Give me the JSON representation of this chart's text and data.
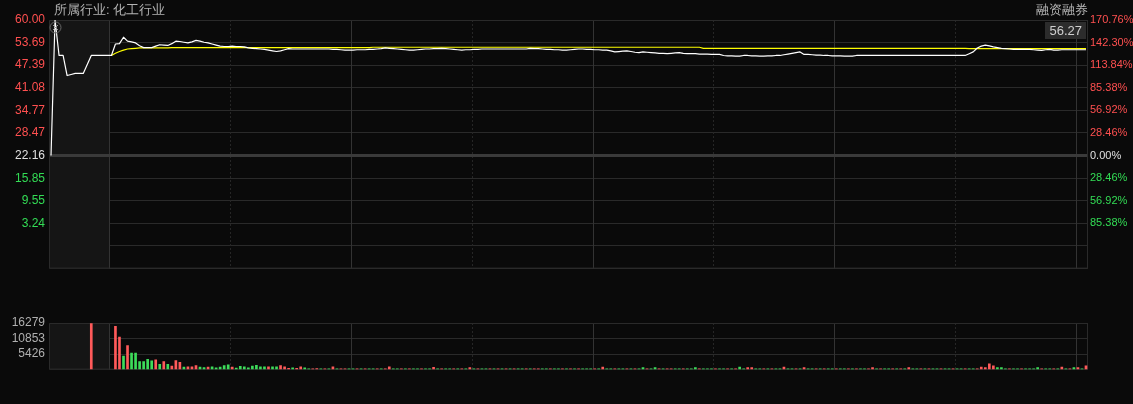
{
  "chart_data": [
    {
      "type": "line",
      "title": "所属行业: 化工行业",
      "annotations": [
        "融资融券",
        "56.27"
      ],
      "categories": [
        null,
        null,
        null,
        null,
        null,
        null,
        null,
        null,
        null,
        null,
        null,
        null,
        null,
        null,
        null,
        null,
        null,
        null,
        null,
        null,
        null,
        null,
        null,
        null,
        null,
        null,
        null,
        null,
        null,
        null,
        null,
        null,
        null,
        null,
        null,
        null,
        null,
        null,
        null,
        null,
        null,
        null,
        null,
        null,
        null,
        null,
        null,
        null,
        null,
        null,
        null,
        null,
        null,
        null,
        null,
        null,
        null,
        null,
        null,
        null,
        null,
        null,
        null,
        null,
        null,
        null,
        null,
        null,
        null,
        null,
        null,
        null,
        null,
        null,
        null,
        null,
        null,
        null,
        null,
        null,
        null,
        null,
        null,
        null,
        null,
        null,
        null,
        null,
        null,
        null,
        null,
        null,
        null,
        null,
        null,
        null,
        null,
        null,
        null,
        null,
        null,
        null,
        null,
        null,
        null,
        null,
        null,
        null,
        null,
        null,
        null,
        null,
        null,
        null,
        null,
        null,
        null,
        null,
        null,
        null,
        null,
        null,
        null,
        null,
        null,
        null,
        null,
        null,
        null,
        null,
        null,
        null,
        null,
        null,
        null,
        null,
        null,
        null,
        null,
        null,
        null,
        null,
        null,
        null,
        null,
        null,
        null,
        null,
        null,
        null,
        null,
        null,
        null,
        null,
        null,
        null,
        null,
        null,
        null,
        null,
        null,
        null,
        null,
        null,
        null,
        null,
        null,
        null,
        null,
        null,
        null,
        null,
        null,
        null,
        null,
        null,
        null,
        null,
        null,
        null,
        null,
        null,
        null,
        null,
        null,
        null,
        null,
        null,
        null,
        null,
        null,
        null,
        null,
        null,
        null,
        null,
        null,
        null,
        null,
        null,
        null,
        null,
        null,
        null,
        null,
        null,
        null,
        null,
        null,
        null,
        null,
        null,
        null,
        null,
        null,
        null,
        null,
        null,
        null,
        null,
        null,
        null,
        null,
        null,
        null,
        null,
        null,
        null,
        null,
        null,
        null,
        null,
        null,
        null,
        null,
        null,
        null,
        null,
        null,
        null,
        null,
        null,
        null,
        null,
        null,
        null,
        null,
        null,
        null,
        null,
        null,
        null,
        null,
        null,
        null,
        null,
        null,
        null
      ],
      "series": [
        {
          "color": "#ffffff",
          "values": [
            22.16,
            60,
            50.1,
            50.1,
            44.5,
            44.8,
            45.1,
            45.1,
            45.1,
            47.6,
            50.1,
            50.1,
            50.1,
            50.1,
            50.1,
            50.1,
            53.3,
            53.4,
            55.2,
            54.1,
            53.9,
            53.6,
            52.8,
            52.3,
            52.3,
            52.3,
            52.7,
            53.1,
            53,
            52.9,
            53.4,
            54.1,
            54,
            53.8,
            53.6,
            53.9,
            54.3,
            54.1,
            53.8,
            53.6,
            53.3,
            53,
            52.7,
            52.6,
            52.6,
            52.7,
            52.6,
            52.6,
            52.5,
            52.2,
            52.1,
            52,
            51.9,
            51.8,
            51.6,
            51.4,
            51.2,
            51.4,
            51.7,
            52,
            51.9,
            51.9,
            51.9,
            51.9,
            51.9,
            51.9,
            51.9,
            51.9,
            51.9,
            51.9,
            51.8,
            51.8,
            51.7,
            51.6,
            51.6,
            51.6,
            51.7,
            51.7,
            51.7,
            51.8,
            51.8,
            51.9,
            52,
            52.2,
            52.1,
            52,
            51.9,
            51.8,
            51.7,
            51.6,
            51.6,
            51.7,
            51.8,
            51.9,
            51.9,
            52,
            52,
            52.1,
            52,
            51.9,
            51.8,
            51.7,
            51.6,
            51.7,
            51.7,
            51.8,
            51.8,
            51.9,
            51.9,
            51.9,
            51.9,
            51.9,
            51.9,
            51.9,
            51.9,
            51.9,
            51.9,
            51.9,
            51.9,
            52.1,
            52,
            52,
            51.9,
            51.8,
            51.8,
            51.7,
            51.7,
            51.6,
            51.6,
            51.7,
            51.8,
            51.9,
            51.9,
            51.8,
            51.8,
            51.7,
            51.7,
            51.6,
            51.6,
            51.4,
            51.1,
            51.2,
            51.3,
            51.4,
            51.2,
            51,
            50.9,
            51.1,
            51,
            50.9,
            50.8,
            50.7,
            50.7,
            50.6,
            50.7,
            50.8,
            50.9,
            50.7,
            50.6,
            50.6,
            50.6,
            50.5,
            50.5,
            50.5,
            50.4,
            50.4,
            50.4,
            50.1,
            50,
            50,
            49.9,
            49.9,
            50.1,
            50.1,
            50,
            50,
            49.9,
            49.9,
            50,
            50,
            50.1,
            50.1,
            50.3,
            50.5,
            50.7,
            50.9,
            51.1,
            50.4,
            50.4,
            50.3,
            50.2,
            50.2,
            50.1,
            50.1,
            50,
            50,
            50,
            49.9,
            49.9,
            49.9,
            50.1,
            50.1,
            50.1,
            50.1,
            50.1,
            50.1,
            50.1,
            50.1,
            50.1,
            50.1,
            50.1,
            50.1,
            50.1,
            50.1,
            50.1,
            50.1,
            50.1,
            50.1,
            50.1,
            50.1,
            50.1,
            50.1,
            50.1,
            50.1,
            50.1,
            50.1,
            50.1,
            50.1,
            50.6,
            51.1,
            52.2,
            52.7,
            53,
            52.8,
            52.5,
            52.3,
            52.1,
            52,
            51.9,
            51.8,
            51.8,
            51.8,
            51.8,
            51.8,
            51.7,
            51.6,
            51.5,
            51.7,
            51.8,
            51.6,
            51.6,
            51.7,
            51.7,
            51.7,
            51.7,
            51.7,
            51.7,
            51.7
          ]
        },
        {
          "color": "#ffff00",
          "values": [
            null,
            null,
            null,
            null,
            null,
            null,
            null,
            null,
            null,
            null,
            null,
            null,
            null,
            null,
            null,
            50.1,
            50.7,
            51.2,
            51.6,
            51.9,
            52,
            52.1,
            52.2,
            52.2,
            52.2,
            52.2,
            52.2,
            52.2,
            52.2,
            52.2,
            52.3,
            52.3,
            52.3,
            52.3,
            52.3,
            52.3,
            52.3,
            52.3,
            52.3,
            52.3,
            52.3,
            52.3,
            52.3,
            52.3,
            52.3,
            52.3,
            52.3,
            52.3,
            52.3,
            52.3,
            52.3,
            52.3,
            52.3,
            52.3,
            52.3,
            52.3,
            52.3,
            52.3,
            52.3,
            52.3,
            52.3,
            52.3,
            52.3,
            52.3,
            52.3,
            52.3,
            52.3,
            52.3,
            52.3,
            52.3,
            52.3,
            52.3,
            52.3,
            52.3,
            52.3,
            52.3,
            52.3,
            52.3,
            52.3,
            52.3,
            52.4,
            52.4,
            52.4,
            52.4,
            52.4,
            52.4,
            52.4,
            52.4,
            52.4,
            52.4,
            52.4,
            52.4,
            52.4,
            52.4,
            52.4,
            52.4,
            52.4,
            52.4,
            52.4,
            52.4,
            52.4,
            52.4,
            52.4,
            52.4,
            52.4,
            52.4,
            52.4,
            52.4,
            52.4,
            52.4,
            52.4,
            52.4,
            52.4,
            52.4,
            52.4,
            52.4,
            52.4,
            52.4,
            52.4,
            52.4,
            52.4,
            52.4,
            52.4,
            52.4,
            52.4,
            52.4,
            52.4,
            52.4,
            52.4,
            52.4,
            52.4,
            52.4,
            52.4,
            52.4,
            52.4,
            52.4,
            52.4,
            52.4,
            52.4,
            52.4,
            52.4,
            52.4,
            52.4,
            52.4,
            52.4,
            52.4,
            52.4,
            52.4,
            52.4,
            52.4,
            52.4,
            52.4,
            52.4,
            52.4,
            52.4,
            52.4,
            52.4,
            52.4,
            52.4,
            52.4,
            52.4,
            52.4,
            52.1,
            52.1,
            52.1,
            52.1,
            52.1,
            52.1,
            52.1,
            52.1,
            52.1,
            52.1,
            52.1,
            52.1,
            52.1,
            52.1,
            52.1,
            52.1,
            52.1,
            52.1,
            52.1,
            52.1,
            52.1,
            52.1,
            52.1,
            52.1,
            52.1,
            52.1,
            52.1,
            52.1,
            52.1,
            52.1,
            52.1,
            52.1,
            52.1,
            52.1,
            52.1,
            52.1,
            52.1,
            52.1,
            52.1,
            52.1,
            52.1,
            52.1,
            52.1,
            52.1,
            52.1,
            52.1,
            52.1,
            52.1,
            52.1,
            52.1,
            52.1,
            52.1,
            52.1,
            52.1,
            52.1,
            52.1,
            52.1,
            52.1,
            52.1,
            52.1,
            52.1,
            52.1,
            52.1,
            52.1,
            52.1,
            52.1,
            52,
            52,
            52,
            52,
            52,
            52,
            52,
            52,
            52,
            52,
            52,
            52,
            52,
            52,
            52,
            52,
            52,
            52,
            52,
            52,
            52,
            52,
            52,
            52,
            52,
            52,
            52,
            52,
            52,
            52
          ]
        }
      ],
      "ylim": [
        -9.38,
        60
      ],
      "yticks": [
        {
          "value": 60,
          "label": "60.00"
        },
        53.69,
        47.39,
        41.08,
        34.77,
        28.47,
        22.16,
        15.85,
        9.55,
        3.24,
        {
          "value": -3.07,
          "label": null
        },
        {
          "value": -9.38,
          "label": null
        }
      ],
      "y2lim": [
        -142.3,
        170.76
      ],
      "y2ticks": [
        {
          "value": 170.76,
          "label": "170.76%"
        },
        {
          "value": 142.3,
          "label": "142.30%"
        },
        {
          "value": 113.84,
          "label": "113.84%"
        },
        {
          "value": 85.38,
          "label": "85.38%"
        },
        {
          "value": 56.92,
          "label": "56.92%"
        },
        {
          "value": 28.46,
          "label": "28.46%"
        },
        {
          "value": 0,
          "label": "0.00%"
        },
        {
          "value": -28.46,
          "label": "28.46%"
        },
        {
          "value": -56.92,
          "label": "56.92%"
        },
        {
          "value": -85.38,
          "label": "85.38%"
        }
      ],
      "ref_lines": [
        {
          "axis": "y",
          "value": 22.16,
          "color": "#3a3a3a"
        }
      ],
      "grid": true,
      "legend": false
    },
    {
      "type": "bar",
      "categories": [
        null,
        null,
        null,
        null,
        null,
        null,
        null,
        null,
        null,
        null,
        null,
        null,
        null,
        null,
        null,
        null,
        null,
        null,
        null,
        null,
        null,
        null,
        null,
        null,
        null,
        null,
        null,
        null,
        null,
        null,
        null,
        null,
        null,
        null,
        null,
        null,
        null,
        null,
        null,
        null,
        null,
        null,
        null,
        null,
        null,
        null,
        null,
        null,
        null,
        null,
        null,
        null,
        null,
        null,
        null,
        null,
        null,
        null,
        null,
        null,
        null,
        null,
        null,
        null,
        null,
        null,
        null,
        null,
        null,
        null,
        null,
        null,
        null,
        null,
        null,
        null,
        null,
        null,
        null,
        null,
        null,
        null,
        null,
        null,
        null,
        null,
        null,
        null,
        null,
        null,
        null,
        null,
        null,
        null,
        null,
        null,
        null,
        null,
        null,
        null,
        null,
        null,
        null,
        null,
        null,
        null,
        null,
        null,
        null,
        null,
        null,
        null,
        null,
        null,
        null,
        null,
        null,
        null,
        null,
        null,
        null,
        null,
        null,
        null,
        null,
        null,
        null,
        null,
        null,
        null,
        null,
        null,
        null,
        null,
        null,
        null,
        null,
        null,
        null,
        null,
        null,
        null,
        null,
        null,
        null,
        null,
        null,
        null,
        null,
        null,
        null,
        null,
        null,
        null,
        null,
        null,
        null,
        null,
        null,
        null,
        null,
        null,
        null,
        null,
        null,
        null,
        null,
        null,
        null,
        null,
        null,
        null,
        null,
        null,
        null,
        null,
        null,
        null,
        null,
        null,
        null,
        null,
        null,
        null,
        null,
        null,
        null,
        null,
        null,
        null,
        null,
        null,
        null,
        null,
        null,
        null,
        null,
        null,
        null,
        null,
        null,
        null,
        null,
        null,
        null,
        null,
        null,
        null,
        null,
        null,
        null,
        null,
        null,
        null,
        null,
        null,
        null,
        null,
        null,
        null,
        null,
        null,
        null,
        null,
        null,
        null,
        null,
        null,
        null,
        null,
        null,
        null,
        null,
        null,
        null,
        null,
        null,
        null,
        null,
        null,
        null,
        null,
        null,
        null,
        null,
        null,
        null,
        null,
        null,
        null,
        null,
        null,
        null,
        null,
        null,
        null,
        null,
        null
      ],
      "values": [
        null,
        null,
        null,
        null,
        null,
        null,
        null,
        null,
        null,
        null,
        16100,
        null,
        null,
        null,
        null,
        null,
        15110,
        11390,
        4730,
        8370,
        5810,
        5810,
        2790,
        2790,
        3560,
        3100,
        3410,
        1860,
        2790,
        1860,
        1240,
        3180,
        2560,
        850,
        1000,
        1000,
        1390,
        850,
        700,
        850,
        1000,
        620,
        850,
        1390,
        1630,
        850,
        540,
        1160,
        1000,
        620,
        1240,
        1470,
        930,
        930,
        930,
        1000,
        1000,
        1390,
        1000,
        470,
        620,
        470,
        1000,
        620,
        300,
        300,
        400,
        300,
        300,
        300,
        1000,
        300,
        300,
        300,
        300,
        300,
        300,
        300,
        300,
        300,
        300,
        300,
        300,
        300,
        1000,
        300,
        300,
        300,
        300,
        300,
        300,
        300,
        300,
        300,
        300,
        800,
        300,
        300,
        300,
        300,
        300,
        300,
        300,
        300,
        700,
        300,
        300,
        300,
        300,
        300,
        300,
        300,
        300,
        300,
        300,
        300,
        300,
        300,
        300,
        300,
        300,
        300,
        300,
        300,
        300,
        300,
        300,
        300,
        300,
        300,
        300,
        300,
        300,
        300,
        300,
        300,
        300,
        880,
        300,
        300,
        300,
        300,
        300,
        300,
        300,
        300,
        300,
        700,
        300,
        300,
        700,
        300,
        300,
        300,
        300,
        300,
        300,
        300,
        300,
        300,
        700,
        300,
        300,
        300,
        300,
        300,
        300,
        300,
        300,
        300,
        300,
        900,
        300,
        700,
        700,
        300,
        300,
        300,
        300,
        300,
        300,
        300,
        900,
        300,
        300,
        300,
        300,
        700,
        300,
        300,
        300,
        300,
        300,
        300,
        300,
        300,
        300,
        300,
        300,
        300,
        300,
        300,
        300,
        300,
        700,
        300,
        300,
        300,
        300,
        300,
        300,
        300,
        300,
        700,
        300,
        300,
        300,
        300,
        300,
        300,
        300,
        300,
        300,
        300,
        300,
        300,
        300,
        300,
        300,
        300,
        300,
        900,
        700,
        2010,
        1300,
        700,
        700,
        300,
        300,
        300,
        300,
        300,
        300,
        300,
        300,
        700,
        300,
        300,
        300,
        300,
        300,
        900,
        300,
        300,
        700,
        700,
        300,
        1300
      ],
      "colors": [
        "#ff5a5a",
        "#ff5a5a",
        "#ff5a5a",
        "#ff5a5a",
        "#ff5a5a",
        "#ff5a5a",
        "#ff5a5a",
        "#ff5a5a",
        "#ff5a5a",
        "#ff5a5a",
        "#ff5a5a",
        "#ff5a5a",
        "#ff5a5a",
        "#ff5a5a",
        "#ff5a5a",
        "#ff5a5a",
        "#ff5a5a",
        "#ff5a5a",
        "#3ddc5a",
        "#ff5a5a",
        "#3ddc5a",
        "#3ddc5a",
        "#3ddc5a",
        "#3ddc5a",
        "#3ddc5a",
        "#3ddc5a",
        "#ff5a5a",
        "#3ddc5a",
        "#ff5a5a",
        "#3ddc5a",
        "#ff5a5a",
        "#ff5a5a",
        "#ff5a5a",
        "#3ddc5a",
        "#ff5a5a",
        "#ff5a5a",
        "#ff5a5a",
        "#3ddc5a",
        "#3ddc5a",
        "#ff5a5a",
        "#3ddc5a",
        "#3ddc5a",
        "#3ddc5a",
        "#3ddc5a",
        "#3ddc5a",
        "#ff5a5a",
        "#3ddc5a",
        "#3ddc5a",
        "#3ddc5a",
        "#3ddc5a",
        "#3ddc5a",
        "#3ddc5a",
        "#3ddc5a",
        "#3ddc5a",
        "#ff5a5a",
        "#3ddc5a",
        "#3ddc5a",
        "#ff5a5a",
        "#ff5a5a",
        "#ff5a5a",
        "#3ddc5a",
        "#ff5a5a",
        "#ff5a5a",
        "#3ddc5a",
        "#3ddc5a",
        "#ff5a5a",
        "#ff5a5a",
        "#3ddc5a",
        "#ff5a5a",
        "#3ddc5a",
        "#ff5a5a",
        "#3ddc5a",
        "#ff5a5a",
        "#ff5a5a",
        "#3ddc5a",
        "#3ddc5a",
        "#ff5a5a",
        "#3ddc5a",
        "#ff5a5a",
        "#3ddc5a",
        "#3ddc5a",
        "#ff5a5a",
        "#3ddc5a",
        "#ff5a5a",
        "#ff5a5a",
        "#3ddc5a",
        "#3ddc5a",
        "#ff5a5a",
        "#3ddc5a",
        "#ff5a5a",
        "#3ddc5a",
        "#3ddc5a",
        "#ff5a5a",
        "#3ddc5a",
        "#3ddc5a",
        "#ff5a5a",
        "#3ddc5a",
        "#ff5a5a",
        "#3ddc5a",
        "#3ddc5a",
        "#ff5a5a",
        "#3ddc5a",
        "#ff5a5a",
        "#3ddc5a",
        "#ff5a5a",
        "#3ddc5a",
        "#ff5a5a",
        "#3ddc5a",
        "#3ddc5a",
        "#ff5a5a",
        "#3ddc5a",
        "#ff5a5a",
        "#3ddc5a",
        "#ff5a5a",
        "#3ddc5a",
        "#ff5a5a",
        "#3ddc5a",
        "#3ddc5a",
        "#ff5a5a",
        "#3ddc5a",
        "#ff5a5a",
        "#ff5a5a",
        "#3ddc5a",
        "#3ddc5a",
        "#ff5a5a",
        "#3ddc5a",
        "#3ddc5a",
        "#ff5a5a",
        "#3ddc5a",
        "#ff5a5a",
        "#3ddc5a",
        "#ff5a5a",
        "#3ddc5a",
        "#3ddc5a",
        "#3ddc5a",
        "#ff5a5a",
        "#3ddc5a",
        "#ff5a5a",
        "#3ddc5a",
        "#3ddc5a",
        "#ff5a5a",
        "#3ddc5a",
        "#3ddc5a",
        "#ff5a5a",
        "#3ddc5a",
        "#ff5a5a",
        "#3ddc5a",
        "#3ddc5a",
        "#ff5a5a",
        "#3ddc5a",
        "#3ddc5a",
        "#ff5a5a",
        "#3ddc5a",
        "#ff5a5a",
        "#ff5a5a",
        "#3ddc5a",
        "#3ddc5a",
        "#ff5a5a",
        "#3ddc5a",
        "#3ddc5a",
        "#3ddc5a",
        "#ff5a5a",
        "#3ddc5a",
        "#3ddc5a",
        "#3ddc5a",
        "#ff5a5a",
        "#3ddc5a",
        "#3ddc5a",
        "#ff5a5a",
        "#3ddc5a",
        "#ff5a5a",
        "#3ddc5a",
        "#3ddc5a",
        "#ff5a5a",
        "#ff5a5a",
        "#3ddc5a",
        "#3ddc5a",
        "#ff5a5a",
        "#3ddc5a",
        "#ff5a5a",
        "#3ddc5a",
        "#3ddc5a",
        "#ff5a5a",
        "#3ddc5a",
        "#3ddc5a",
        "#ff5a5a",
        "#3ddc5a",
        "#ff5a5a",
        "#3ddc5a",
        "#3ddc5a",
        "#ff5a5a",
        "#3ddc5a",
        "#ff5a5a",
        "#3ddc5a",
        "#3ddc5a",
        "#ff5a5a",
        "#3ddc5a",
        "#3ddc5a",
        "#ff5a5a",
        "#3ddc5a",
        "#ff5a5a",
        "#3ddc5a",
        "#3ddc5a",
        "#ff5a5a",
        "#ff5a5a",
        "#3ddc5a",
        "#ff5a5a",
        "#3ddc5a",
        "#3ddc5a",
        "#ff5a5a",
        "#3ddc5a",
        "#ff5a5a",
        "#3ddc5a",
        "#ff5a5a",
        "#3ddc5a",
        "#3ddc5a",
        "#ff5a5a",
        "#3ddc5a",
        "#ff5a5a",
        "#3ddc5a",
        "#3ddc5a",
        "#ff5a5a",
        "#3ddc5a",
        "#3ddc5a",
        "#ff5a5a",
        "#3ddc5a",
        "#3ddc5a",
        "#ff5a5a",
        "#3ddc5a",
        "#3ddc5a",
        "#ff5a5a",
        "#ff5a5a",
        "#ff5a5a",
        "#ff5a5a",
        "#ff5a5a",
        "#3ddc5a",
        "#3ddc5a",
        "#3ddc5a",
        "#ff5a5a",
        "#3ddc5a",
        "#3ddc5a",
        "#ff5a5a",
        "#3ddc5a",
        "#3ddc5a",
        "#3ddc5a",
        "#3ddc5a",
        "#ff5a5a",
        "#3ddc5a",
        "#3ddc5a",
        "#ff5a5a",
        "#3ddc5a",
        "#ff5a5a",
        "#3ddc5a",
        "#ff5a5a",
        "#3ddc5a",
        "#ff5a5a",
        "#3ddc5a",
        "#ff5a5a"
      ],
      "ylim": [
        0,
        16279
      ],
      "yticks": [
        {
          "value": 0,
          "label": null
        },
        5426,
        10853,
        16279
      ],
      "grid": true,
      "legend": false
    }
  ]
}
